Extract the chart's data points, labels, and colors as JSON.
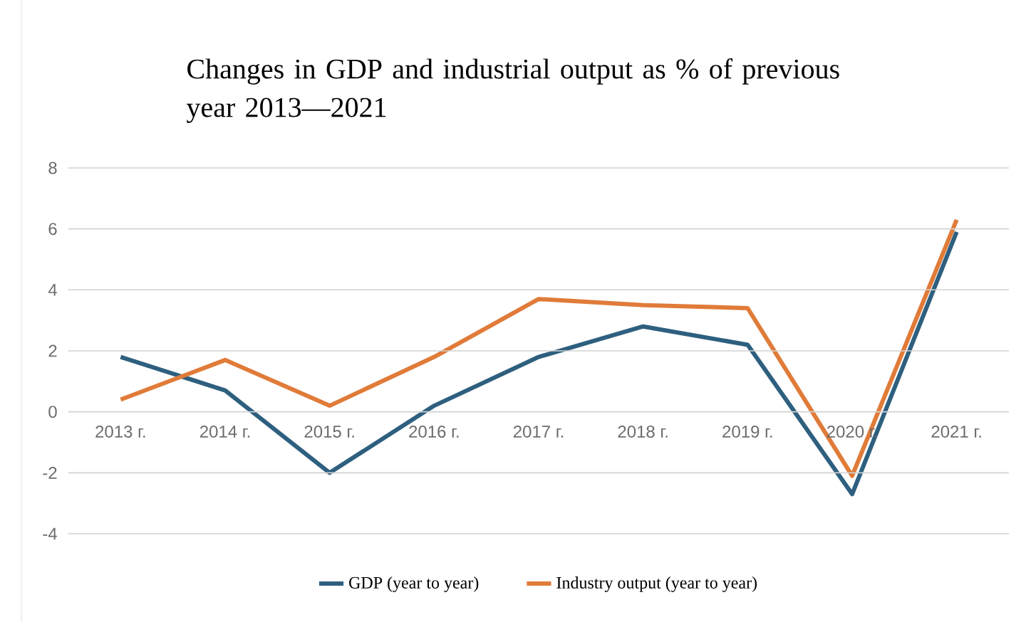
{
  "chart_data": {
    "type": "line",
    "title": "Changes in GDP and industrial output as % of previous year 2013—2021",
    "categories": [
      "2013 г.",
      "2014 г.",
      "2015 г.",
      "2016 г.",
      "2017 г.",
      "2018 г.",
      "2019 г.",
      "2020 г.",
      "2021 г."
    ],
    "series": [
      {
        "name": "GDP (year to year)",
        "color": "#2e5f7f",
        "values": [
          1.8,
          0.7,
          -2.0,
          0.2,
          1.8,
          2.8,
          2.2,
          -2.7,
          5.9
        ]
      },
      {
        "name": "Industry output (year to year)",
        "color": "#e07b39",
        "values": [
          0.4,
          1.7,
          0.2,
          1.8,
          3.7,
          3.5,
          3.4,
          -2.1,
          6.3
        ]
      }
    ],
    "ylim": [
      -4,
      8
    ],
    "yticks": [
      -4,
      -2,
      0,
      2,
      4,
      6,
      8
    ],
    "grid": "y",
    "legend": "bottom"
  }
}
